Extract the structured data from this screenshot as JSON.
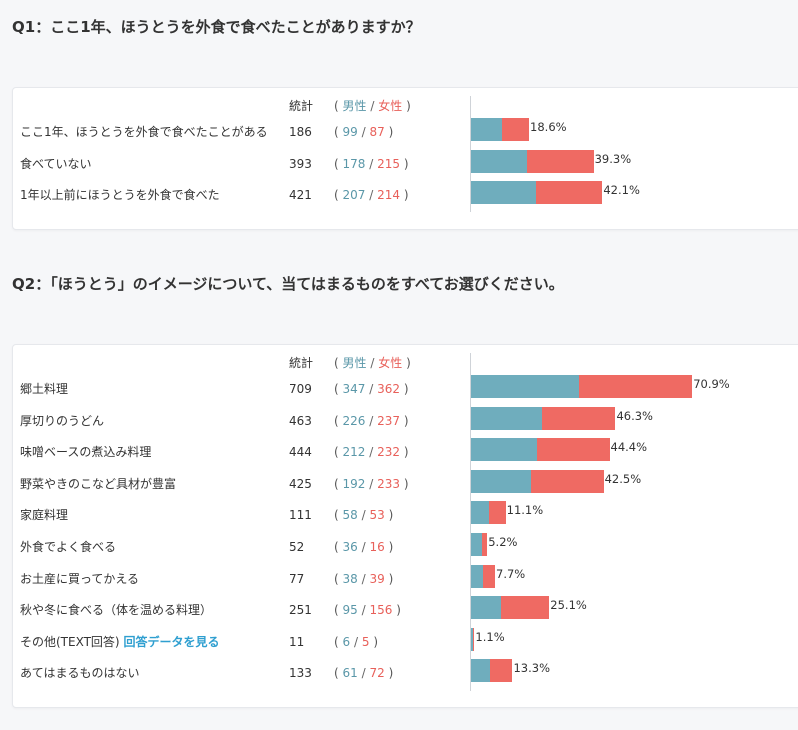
{
  "q1": {
    "title": "Q1：ここ1年、ほうとうを外食で食べたことがありますか？",
    "header": {
      "total": "統計",
      "open": "(",
      "male": "男性",
      "slash": "/",
      "female": "女性",
      "close": ")"
    },
    "rows": [
      {
        "label": "ここ1年、ほうとうを外食で食べたことがある",
        "total": "186",
        "male": "99",
        "female": "87",
        "pct": "18.6%"
      },
      {
        "label": "食べていない",
        "total": "393",
        "male": "178",
        "female": "215",
        "pct": "39.3%"
      },
      {
        "label": "1年以上前にほうとうを外食で食べた",
        "total": "421",
        "male": "207",
        "female": "214",
        "pct": "42.1%"
      }
    ]
  },
  "q2": {
    "title": "Q2：「ほうとう」のイメージについて、当てはまるものをすべてお選びください。",
    "header": {
      "total": "統計",
      "open": "(",
      "male": "男性",
      "slash": "/",
      "female": "女性",
      "close": ")"
    },
    "rows": [
      {
        "label": "郷土料理",
        "total": "709",
        "male": "347",
        "female": "362",
        "pct": "70.9%"
      },
      {
        "label": "厚切りのうどん",
        "total": "463",
        "male": "226",
        "female": "237",
        "pct": "46.3%"
      },
      {
        "label": "味噌ベースの煮込み料理",
        "total": "444",
        "male": "212",
        "female": "232",
        "pct": "44.4%"
      },
      {
        "label": "野菜やきのこなど具材が豊富",
        "total": "425",
        "male": "192",
        "female": "233",
        "pct": "42.5%"
      },
      {
        "label": "家庭料理",
        "total": "111",
        "male": "58",
        "female": "53",
        "pct": "11.1%"
      },
      {
        "label": "外食でよく食べる",
        "total": "52",
        "male": "36",
        "female": "16",
        "pct": "5.2%"
      },
      {
        "label": "お土産に買ってかえる",
        "total": "77",
        "male": "38",
        "female": "39",
        "pct": "7.7%"
      },
      {
        "label": "秋や冬に食べる（体を温める料理）",
        "total": "251",
        "male": "95",
        "female": "156",
        "pct": "25.1%"
      },
      {
        "label": "その他(TEXT回答)",
        "link": "回答データを見る",
        "total": "11",
        "male": "6",
        "female": "5",
        "pct": "1.1%"
      },
      {
        "label": "あてはまるものはない",
        "total": "133",
        "male": "61",
        "female": "72",
        "pct": "13.3%"
      }
    ]
  },
  "chart_data": [
    {
      "type": "bar",
      "title": "Q1：ここ1年、ほうとうを外食で食べたことがありますか？",
      "categories": [
        "ここ1年、ほうとうを外食で食べたことがある",
        "食べていない",
        "1年以上前にほうとうを外食で食べた"
      ],
      "series": [
        {
          "name": "男性",
          "values": [
            99,
            178,
            207
          ]
        },
        {
          "name": "女性",
          "values": [
            87,
            215,
            214
          ]
        }
      ],
      "totals": [
        186,
        393,
        421
      ],
      "percent": [
        18.6,
        39.3,
        42.1
      ],
      "stacked": true,
      "orientation": "horizontal",
      "colors": {
        "male": "#6fadbd",
        "female": "#ef6a63"
      }
    },
    {
      "type": "bar",
      "title": "Q2：「ほうとう」のイメージについて、当てはまるものをすべてお選びください。",
      "categories": [
        "郷土料理",
        "厚切りのうどん",
        "味噌ベースの煮込み料理",
        "野菜やきのこなど具材が豊富",
        "家庭料理",
        "外食でよく食べる",
        "お土産に買ってかえる",
        "秋や冬に食べる（体を温める料理）",
        "その他(TEXT回答)",
        "あてはまるものはない"
      ],
      "series": [
        {
          "name": "男性",
          "values": [
            347,
            226,
            212,
            192,
            58,
            36,
            38,
            95,
            6,
            61
          ]
        },
        {
          "name": "女性",
          "values": [
            362,
            237,
            232,
            233,
            53,
            16,
            39,
            156,
            5,
            72
          ]
        }
      ],
      "totals": [
        709,
        463,
        444,
        425,
        111,
        52,
        77,
        251,
        11,
        133
      ],
      "percent": [
        70.9,
        46.3,
        44.4,
        42.5,
        11.1,
        5.2,
        7.7,
        25.1,
        1.1,
        13.3
      ],
      "stacked": true,
      "orientation": "horizontal",
      "colors": {
        "male": "#6fadbd",
        "female": "#ef6a63"
      }
    }
  ]
}
